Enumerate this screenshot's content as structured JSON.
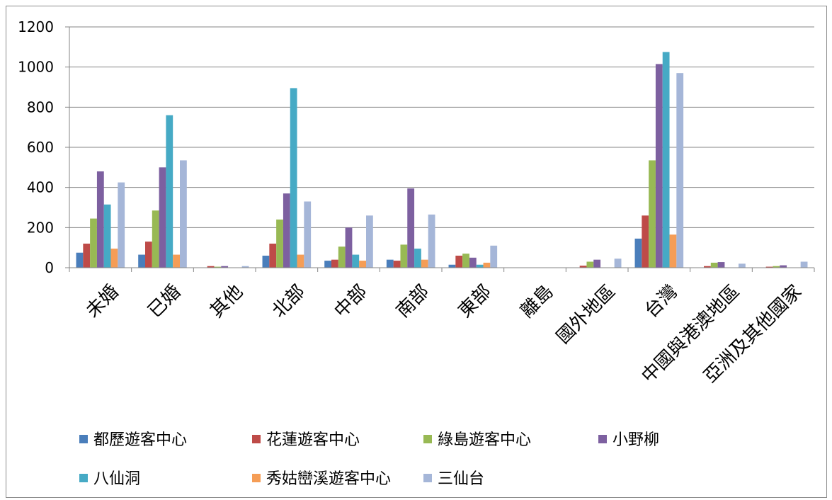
{
  "chart_data": {
    "type": "bar",
    "categories": [
      "未婚",
      "已婚",
      "其他",
      "北部",
      "中部",
      "南部",
      "東部",
      "離島",
      "國外地區",
      "台灣",
      "中國與港澳地區",
      "亞洲及其他國家"
    ],
    "series": [
      {
        "name": "都歷遊客中心",
        "color": "#4a7ebb",
        "values": [
          75,
          65,
          0,
          60,
          35,
          40,
          15,
          0,
          0,
          145,
          0,
          0
        ]
      },
      {
        "name": "花蓮遊客中心",
        "color": "#be4b48",
        "values": [
          120,
          130,
          8,
          120,
          40,
          35,
          60,
          0,
          10,
          260,
          8,
          5
        ]
      },
      {
        "name": "綠島遊客中心",
        "color": "#98b954",
        "values": [
          245,
          285,
          5,
          240,
          105,
          115,
          70,
          0,
          30,
          535,
          25,
          8
        ]
      },
      {
        "name": "小野柳",
        "color": "#7d60a0",
        "values": [
          480,
          500,
          8,
          370,
          200,
          395,
          50,
          0,
          40,
          1015,
          28,
          12
        ]
      },
      {
        "name": "八仙洞",
        "color": "#46aac5",
        "values": [
          315,
          760,
          0,
          895,
          65,
          95,
          15,
          0,
          0,
          1075,
          0,
          0
        ]
      },
      {
        "name": "秀姑巒溪遊客中心",
        "color": "#f59d56",
        "values": [
          95,
          65,
          0,
          65,
          35,
          40,
          25,
          0,
          0,
          165,
          0,
          0
        ]
      },
      {
        "name": "三仙台",
        "color": "#a5b6d8",
        "values": [
          425,
          535,
          8,
          330,
          260,
          265,
          110,
          0,
          45,
          970,
          20,
          30
        ]
      }
    ],
    "yticks": [
      "0",
      "200",
      "400",
      "600",
      "800",
      "1000",
      "1200"
    ],
    "ylim": [
      0,
      1200
    ],
    "grid": true,
    "legend_position": "bottom",
    "title": "",
    "xlabel": "",
    "ylabel": ""
  }
}
